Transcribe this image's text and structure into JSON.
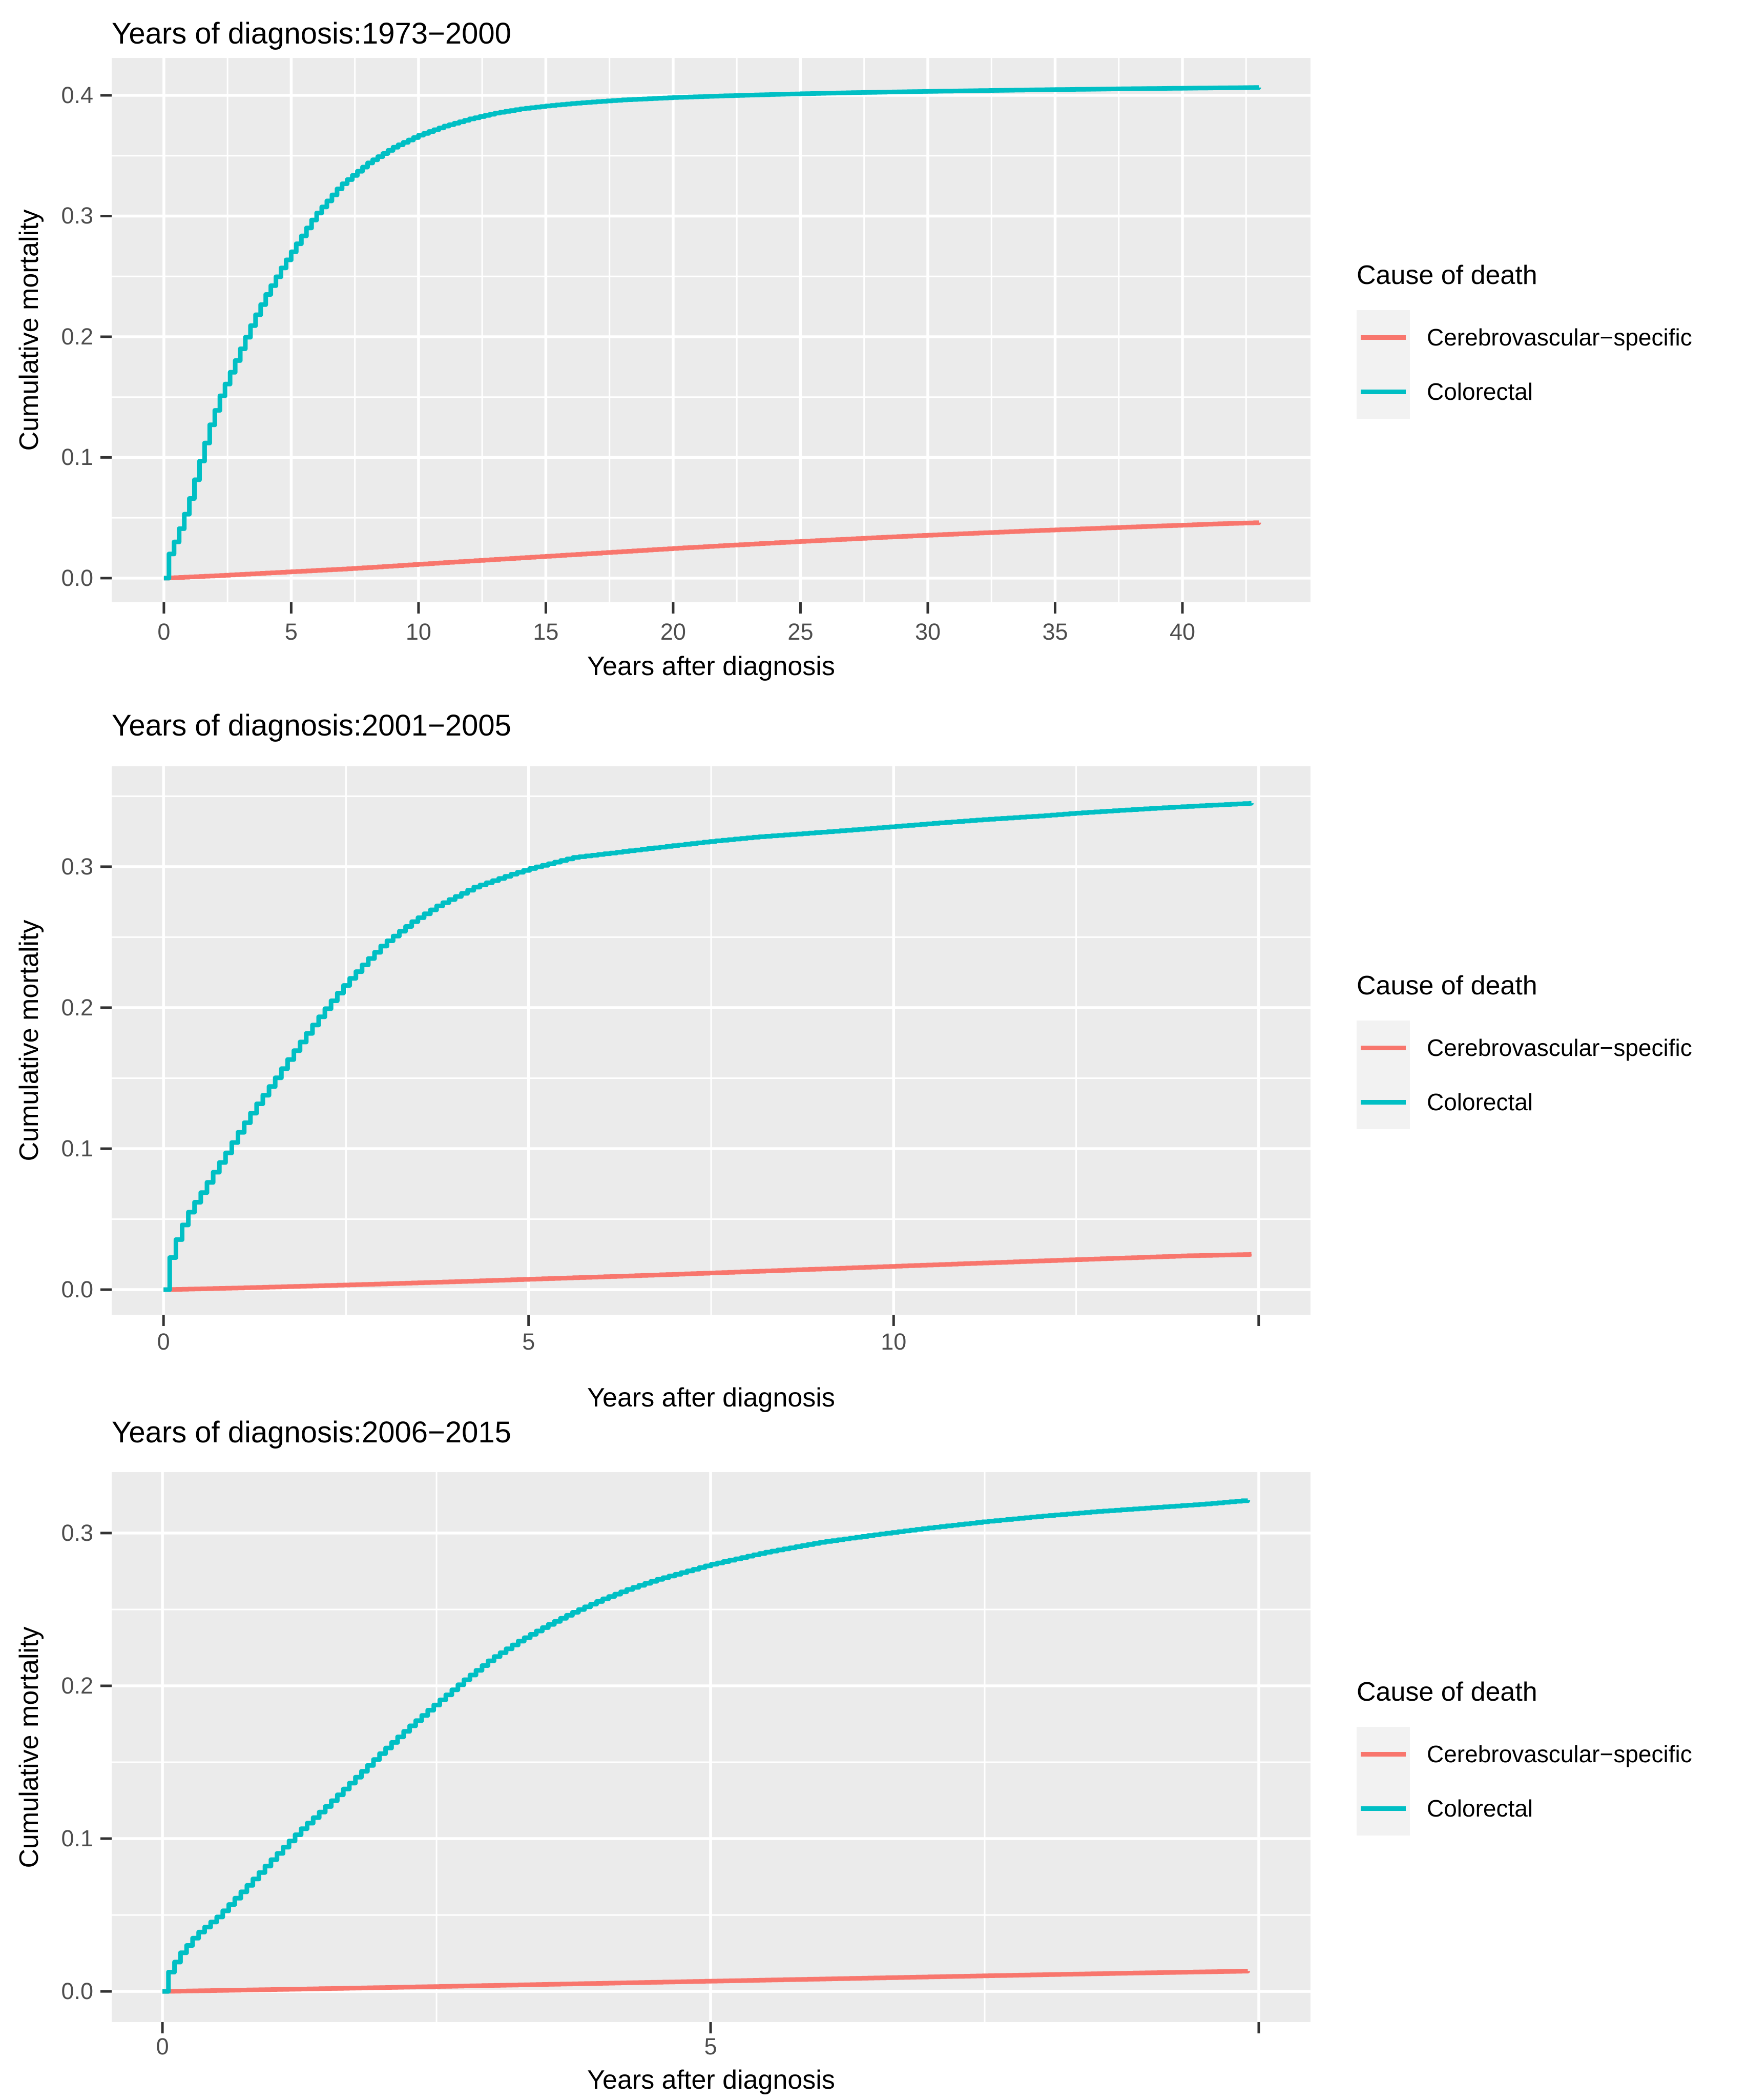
{
  "page": {
    "background": "#FFFFFF"
  },
  "colors": {
    "cerebrovascular": "#F8766D",
    "colorectal": "#00BFC4",
    "panel_bg": "#EBEBEB",
    "grid": "#FFFFFF",
    "tick_mark": "#333333",
    "tick_text": "#4D4D4D",
    "title_text": "#000000",
    "legend_key_bg": "#F2F2F2"
  },
  "legend": {
    "title": "Cause of death",
    "entries": [
      {
        "label": "Cerebrovascular−specific",
        "color_key": "cerebrovascular"
      },
      {
        "label": "Colorectal",
        "color_key": "colorectal"
      }
    ]
  },
  "chart_data": [
    {
      "type": "line",
      "style": "step",
      "title": "Years of diagnosis:1973−2000",
      "xlabel": "Years after diagnosis",
      "ylabel": "Cumulative mortality",
      "xlim": [
        -2.05,
        45.03
      ],
      "ylim": [
        -0.02,
        0.431
      ],
      "grid": true,
      "legend_position": "right",
      "x_ticks": [
        {
          "v": 0,
          "label": "0"
        },
        {
          "v": 5,
          "label": "5"
        },
        {
          "v": 10,
          "label": "10"
        },
        {
          "v": 15,
          "label": "15"
        },
        {
          "v": 20,
          "label": "20"
        },
        {
          "v": 25,
          "label": "25"
        },
        {
          "v": 30,
          "label": "30"
        },
        {
          "v": 35,
          "label": "35"
        },
        {
          "v": 40,
          "label": "40"
        }
      ],
      "x_extra_majors": [],
      "x_minor": [
        2.5,
        7.5,
        12.5,
        17.5,
        22.5,
        27.5,
        32.5,
        37.5,
        42.5
      ],
      "y_ticks": [
        {
          "v": 0.0,
          "label": "0.0"
        },
        {
          "v": 0.1,
          "label": "0.1"
        },
        {
          "v": 0.2,
          "label": "0.2"
        },
        {
          "v": 0.3,
          "label": "0.3"
        },
        {
          "v": 0.4,
          "label": "0.4"
        }
      ],
      "y_minor": [
        0.05,
        0.15,
        0.25,
        0.35
      ],
      "step_dx": 0.2,
      "series": [
        {
          "name": "Cerebrovascular−specific",
          "color_key": "cerebrovascular",
          "points": [
            [
              0,
              0
            ],
            [
              1,
              0.001
            ],
            [
              2,
              0.002
            ],
            [
              3,
              0.0031
            ],
            [
              4,
              0.0042
            ],
            [
              5,
              0.0053
            ],
            [
              6,
              0.0064
            ],
            [
              7,
              0.0075
            ],
            [
              8,
              0.0088
            ],
            [
              9,
              0.0101
            ],
            [
              10,
              0.0115
            ],
            [
              12,
              0.0142
            ],
            [
              14,
              0.0168
            ],
            [
              16,
              0.0194
            ],
            [
              18,
              0.022
            ],
            [
              20,
              0.0246
            ],
            [
              22,
              0.027
            ],
            [
              24,
              0.0293
            ],
            [
              26,
              0.0315
            ],
            [
              28,
              0.0336
            ],
            [
              30,
              0.0356
            ],
            [
              32,
              0.0374
            ],
            [
              34,
              0.0392
            ],
            [
              36,
              0.0408
            ],
            [
              38,
              0.0424
            ],
            [
              40,
              0.0439
            ],
            [
              41.5,
              0.0451
            ],
            [
              43,
              0.046
            ]
          ]
        },
        {
          "name": "Colorectal",
          "color_key": "colorectal",
          "points": [
            [
              0,
              0
            ],
            [
              0.08,
              0.012
            ],
            [
              0.2,
              0.02
            ],
            [
              0.4,
              0.03
            ],
            [
              0.6,
              0.041
            ],
            [
              0.8,
              0.053
            ],
            [
              1,
              0.066
            ],
            [
              1.4,
              0.097
            ],
            [
              1.8,
              0.127
            ],
            [
              2.2,
              0.151
            ],
            [
              2.65,
              0.173
            ],
            [
              3,
              0.19
            ],
            [
              3.5,
              0.214
            ],
            [
              4,
              0.235
            ],
            [
              4.6,
              0.257
            ],
            [
              5.2,
              0.277
            ],
            [
              5.9,
              0.3
            ],
            [
              6.9,
              0.325
            ],
            [
              8,
              0.344
            ],
            [
              9,
              0.357
            ],
            [
              10,
              0.367
            ],
            [
              11,
              0.3745
            ],
            [
              12,
              0.3805
            ],
            [
              13,
              0.3853
            ],
            [
              14,
              0.3888
            ],
            [
              15,
              0.3912
            ],
            [
              16,
              0.3932
            ],
            [
              17,
              0.3948
            ],
            [
              18,
              0.3962
            ],
            [
              20,
              0.3982
            ],
            [
              22,
              0.3996
            ],
            [
              24,
              0.4008
            ],
            [
              26,
              0.4018
            ],
            [
              28,
              0.4026
            ],
            [
              30,
              0.4033
            ],
            [
              32,
              0.4039
            ],
            [
              34,
              0.4045
            ],
            [
              36,
              0.405
            ],
            [
              38,
              0.4055
            ],
            [
              40,
              0.4059
            ],
            [
              41.5,
              0.4062
            ],
            [
              43,
              0.4065
            ]
          ]
        }
      ]
    },
    {
      "type": "line",
      "style": "step",
      "title": "Years of diagnosis:2001−2005",
      "xlabel": "Years after diagnosis",
      "ylabel": "Cumulative mortality",
      "xlim": [
        -0.71,
        15.71
      ],
      "ylim": [
        -0.0178,
        0.3712
      ],
      "grid": true,
      "legend_position": "right",
      "x_ticks": [
        {
          "v": 0,
          "label": "0"
        },
        {
          "v": 5,
          "label": "5"
        },
        {
          "v": 10,
          "label": "10"
        }
      ],
      "x_extra_majors": [
        15
      ],
      "x_minor": [
        2.5,
        7.5,
        12.5
      ],
      "y_ticks": [
        {
          "v": 0.0,
          "label": "0.0"
        },
        {
          "v": 0.1,
          "label": "0.1"
        },
        {
          "v": 0.2,
          "label": "0.2"
        },
        {
          "v": 0.3,
          "label": "0.3"
        }
      ],
      "y_minor": [
        0.05,
        0.15,
        0.25,
        0.35
      ],
      "step_dx": 0.085,
      "series": [
        {
          "name": "Cerebrovascular−specific",
          "color_key": "cerebrovascular",
          "points": [
            [
              0,
              0
            ],
            [
              1,
              0.0012
            ],
            [
              2,
              0.0026
            ],
            [
              3,
              0.0041
            ],
            [
              4,
              0.0057
            ],
            [
              5,
              0.0074
            ],
            [
              6,
              0.0091
            ],
            [
              7,
              0.0109
            ],
            [
              8,
              0.0128
            ],
            [
              9,
              0.0147
            ],
            [
              10,
              0.0166
            ],
            [
              11,
              0.0185
            ],
            [
              12,
              0.0204
            ],
            [
              13,
              0.0222
            ],
            [
              14,
              0.024
            ],
            [
              14.9,
              0.025
            ]
          ]
        },
        {
          "name": "Colorectal",
          "color_key": "colorectal",
          "points": [
            [
              0,
              0
            ],
            [
              0.08,
              0.022
            ],
            [
              0.2,
              0.04
            ],
            [
              0.35,
              0.056
            ],
            [
              0.5,
              0.068
            ],
            [
              0.7,
              0.085
            ],
            [
              0.85,
              0.097
            ],
            [
              1,
              0.11
            ],
            [
              1.25,
              0.13
            ],
            [
              1.5,
              0.148
            ],
            [
              1.75,
              0.167
            ],
            [
              2,
              0.185
            ],
            [
              2.25,
              0.202
            ],
            [
              2.5,
              0.218
            ],
            [
              2.75,
              0.232
            ],
            [
              3,
              0.245
            ],
            [
              3.4,
              0.261
            ],
            [
              3.75,
              0.2725
            ],
            [
              4.25,
              0.2855
            ],
            [
              4.75,
              0.2945
            ],
            [
              5,
              0.2985
            ],
            [
              5.6,
              0.3065
            ],
            [
              6.25,
              0.3105
            ],
            [
              6.9,
              0.3145
            ],
            [
              7.5,
              0.318
            ],
            [
              8.1,
              0.321
            ],
            [
              8.75,
              0.3235
            ],
            [
              9.4,
              0.326
            ],
            [
              10,
              0.3285
            ],
            [
              10.6,
              0.331
            ],
            [
              11.25,
              0.3335
            ],
            [
              12,
              0.336
            ],
            [
              12.5,
              0.338
            ],
            [
              13.1,
              0.34
            ],
            [
              13.75,
              0.342
            ],
            [
              14.3,
              0.3435
            ],
            [
              14.9,
              0.345
            ]
          ]
        }
      ]
    },
    {
      "type": "line",
      "style": "step",
      "title": "Years of diagnosis:2006−2015",
      "xlabel": "Years after diagnosis",
      "ylabel": "Cumulative mortality",
      "xlim": [
        -0.463,
        10.472
      ],
      "ylim": [
        -0.0201,
        0.3399
      ],
      "grid": true,
      "legend_position": "right",
      "x_ticks": [
        {
          "v": 0,
          "label": "0"
        },
        {
          "v": 5,
          "label": "5"
        }
      ],
      "x_extra_majors": [
        10
      ],
      "x_minor": [
        2.5,
        7.5
      ],
      "y_ticks": [
        {
          "v": 0.0,
          "label": "0.0"
        },
        {
          "v": 0.1,
          "label": "0.1"
        },
        {
          "v": 0.2,
          "label": "0.2"
        },
        {
          "v": 0.3,
          "label": "0.3"
        }
      ],
      "y_minor": [
        0.05,
        0.15,
        0.25
      ],
      "step_dx": 0.055,
      "series": [
        {
          "name": "Cerebrovascular−specific",
          "color_key": "cerebrovascular",
          "points": [
            [
              0,
              0
            ],
            [
              1,
              0.0012
            ],
            [
              2,
              0.0025
            ],
            [
              3,
              0.0039
            ],
            [
              4,
              0.0053
            ],
            [
              5,
              0.0067
            ],
            [
              6,
              0.0081
            ],
            [
              7,
              0.0095
            ],
            [
              8,
              0.0109
            ],
            [
              9,
              0.0122
            ],
            [
              9.9,
              0.0133
            ]
          ]
        },
        {
          "name": "Colorectal",
          "color_key": "colorectal",
          "points": [
            [
              0,
              0
            ],
            [
              0.05,
              0.012
            ],
            [
              0.15,
              0.024
            ],
            [
              0.3,
              0.037
            ],
            [
              0.5,
              0.049
            ],
            [
              0.7,
              0.064
            ],
            [
              0.85,
              0.0755
            ],
            [
              1,
              0.087
            ],
            [
              1.25,
              0.1055
            ],
            [
              1.5,
              0.122
            ],
            [
              1.75,
              0.1395
            ],
            [
              2,
              0.157
            ],
            [
              2.25,
              0.1735
            ],
            [
              2.5,
              0.189
            ],
            [
              2.75,
              0.204
            ],
            [
              3,
              0.218
            ],
            [
              3.25,
              0.2295
            ],
            [
              3.5,
              0.2395
            ],
            [
              3.75,
              0.2485
            ],
            [
              4,
              0.2565
            ],
            [
              4.25,
              0.2635
            ],
            [
              4.5,
              0.2695
            ],
            [
              4.75,
              0.2745
            ],
            [
              5,
              0.2795
            ],
            [
              5.5,
              0.2875
            ],
            [
              6,
              0.294
            ],
            [
              6.5,
              0.299
            ],
            [
              7,
              0.3035
            ],
            [
              7.5,
              0.3075
            ],
            [
              8,
              0.311
            ],
            [
              8.5,
              0.314
            ],
            [
              9,
              0.3165
            ],
            [
              9.5,
              0.319
            ],
            [
              9.9,
              0.3215
            ]
          ]
        }
      ]
    }
  ]
}
